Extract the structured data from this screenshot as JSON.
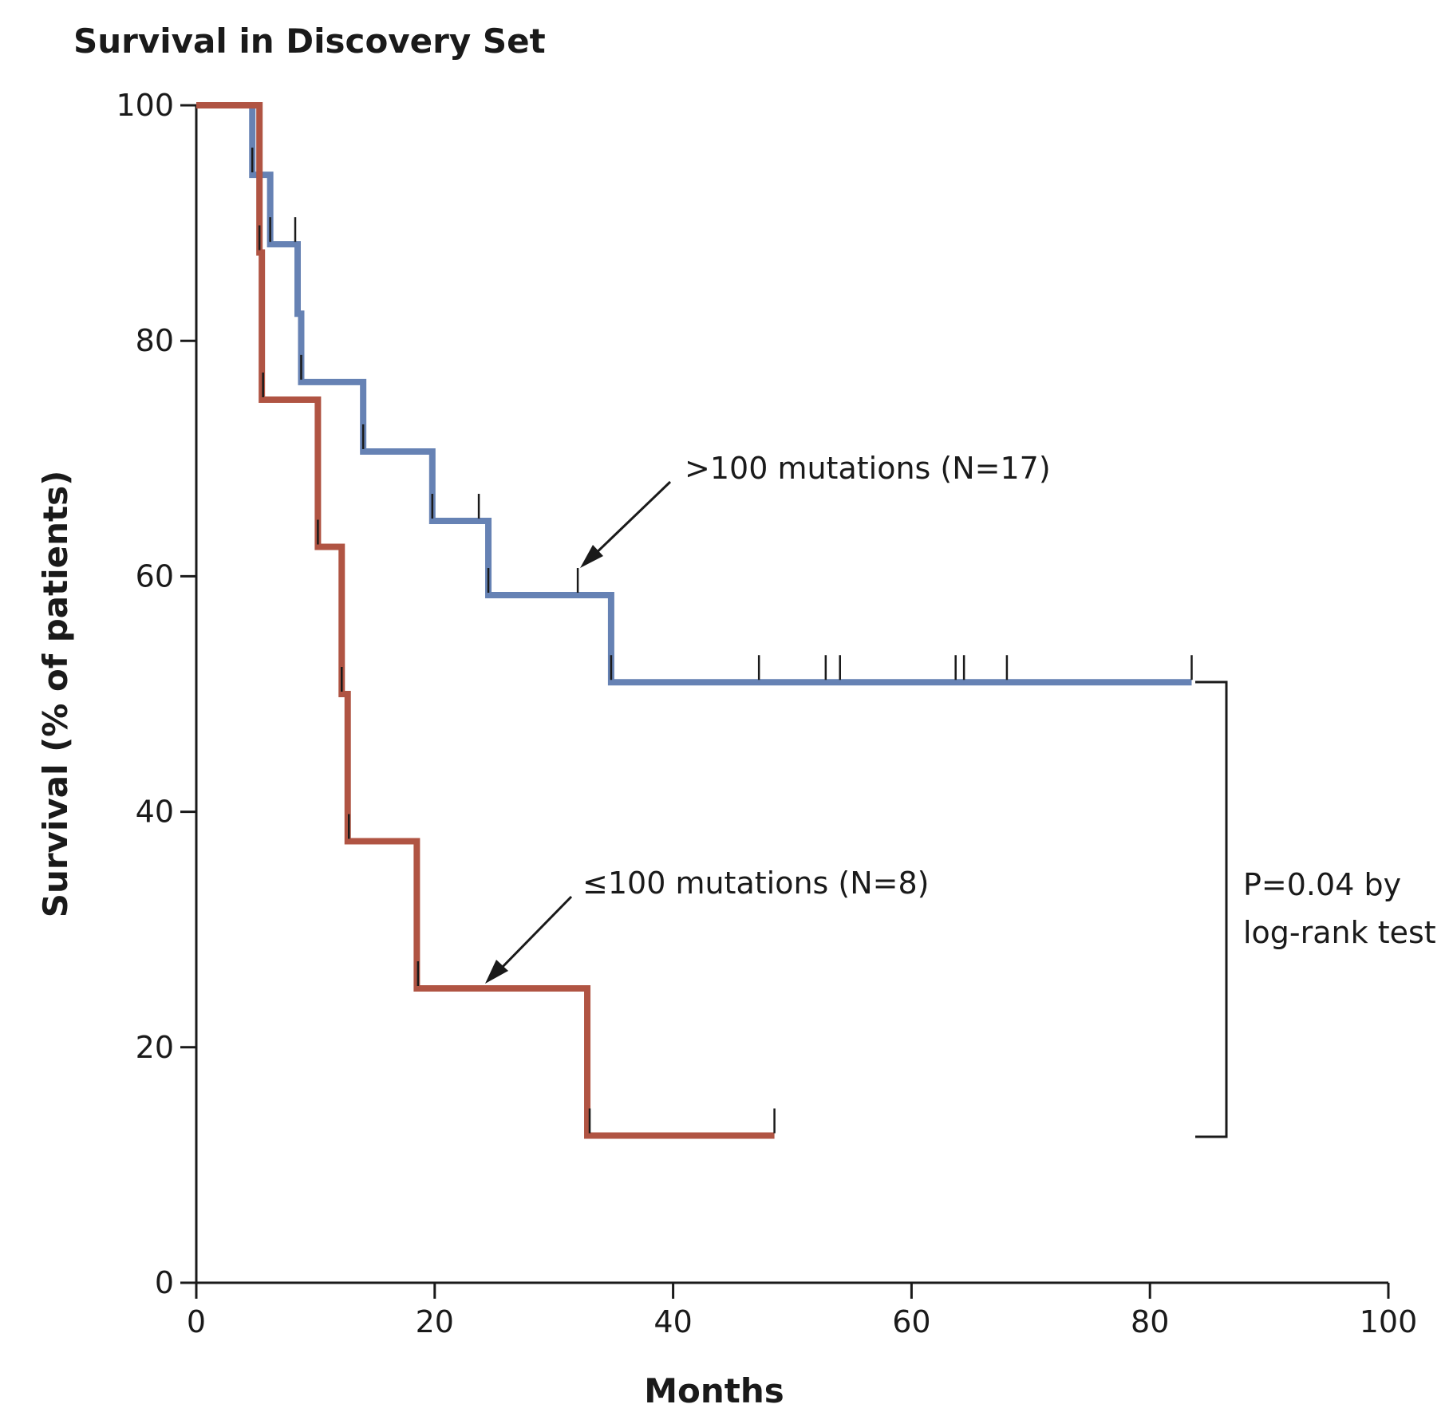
{
  "chart_data": {
    "type": "line",
    "subtype": "kaplan-meier",
    "title": "Survival in Discovery Set",
    "xlabel": "Months",
    "ylabel": "Survival (% of patients)",
    "xlim": [
      0,
      100
    ],
    "ylim": [
      0,
      100
    ],
    "x_ticks": [
      0,
      20,
      40,
      60,
      80,
      100
    ],
    "y_ticks": [
      0,
      20,
      40,
      60,
      80,
      100
    ],
    "grid": false,
    "series": [
      {
        "name": ">100 mutations (N=17)",
        "color": "#6682b4",
        "steps": [
          [
            0,
            100
          ],
          [
            4.7,
            94.1
          ],
          [
            6.2,
            88.2
          ],
          [
            8.5,
            82.3
          ],
          [
            8.8,
            76.5
          ],
          [
            14,
            70.6
          ],
          [
            19.8,
            64.7
          ],
          [
            24.5,
            58.4
          ],
          [
            34.8,
            51.0
          ],
          [
            83.5,
            51.0
          ]
        ],
        "censor_times": [
          4.7,
          6.2,
          8.3,
          8.8,
          14,
          19.8,
          23.7,
          24.5,
          32,
          34.8,
          47.2,
          52.8,
          54,
          63.7,
          64.4,
          68,
          83.5
        ]
      },
      {
        "name": "≤100 mutations (N=8)",
        "color": "#b05443",
        "steps": [
          [
            0,
            100
          ],
          [
            5.3,
            87.5
          ],
          [
            5.5,
            75.0
          ],
          [
            10.2,
            62.5
          ],
          [
            12.2,
            50.0
          ],
          [
            12.7,
            37.5
          ],
          [
            18.5,
            25.0
          ],
          [
            32.8,
            12.5
          ],
          [
            48.5,
            12.5
          ]
        ],
        "censor_times": [
          5.3,
          5.6,
          10.2,
          12.2,
          12.8,
          18.6,
          33,
          48.5
        ]
      }
    ],
    "annotations": {
      "high_label": ">100 mutations (N=17)",
      "low_label": "≤100 mutations (N=8)",
      "p_value_line1": "P=0.04 by",
      "p_value_line2": "log-rank test"
    }
  }
}
